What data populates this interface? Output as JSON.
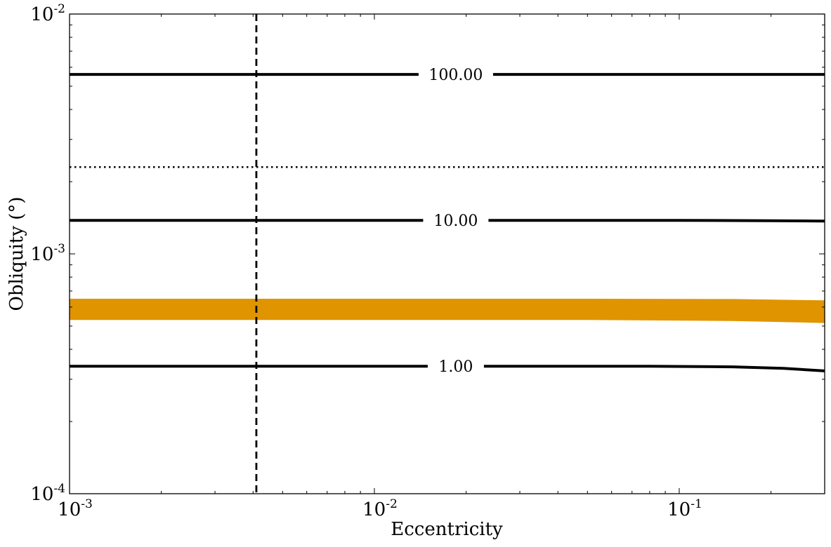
{
  "chart_data": {
    "type": "line",
    "title": "",
    "xlabel": "Eccentricity",
    "ylabel": "Obliquity (°)",
    "x_scale": "log",
    "y_scale": "log",
    "xlim": [
      0.001,
      0.3
    ],
    "ylim": [
      0.0001,
      0.01
    ],
    "grid": false,
    "x_ticks": [
      {
        "value": 0.001,
        "base": "10",
        "exp": "-3"
      },
      {
        "value": 0.01,
        "base": "10",
        "exp": "-2"
      },
      {
        "value": 0.1,
        "base": "10",
        "exp": "-1"
      }
    ],
    "y_ticks": [
      {
        "value": 0.0001,
        "base": "10",
        "exp": "-4"
      },
      {
        "value": 0.001,
        "base": "10",
        "exp": "-3"
      },
      {
        "value": 0.01,
        "base": "10",
        "exp": "-2"
      }
    ],
    "contours": [
      {
        "label": "100.00",
        "color": "#000000",
        "points": [
          [
            0.001,
            0.0056
          ],
          [
            0.01,
            0.0056
          ],
          [
            0.1,
            0.0056
          ],
          [
            0.3,
            0.0056
          ]
        ],
        "label_x": 0.0185
      },
      {
        "label": "10.00",
        "color": "#000000",
        "points": [
          [
            0.001,
            0.00138
          ],
          [
            0.01,
            0.00138
          ],
          [
            0.1,
            0.00138
          ],
          [
            0.2,
            0.001375
          ],
          [
            0.3,
            0.00137
          ]
        ],
        "label_x": 0.0185
      },
      {
        "label": "1.00",
        "color": "#000000",
        "points": [
          [
            0.001,
            0.00034
          ],
          [
            0.01,
            0.00034
          ],
          [
            0.08,
            0.00034
          ],
          [
            0.15,
            0.000338
          ],
          [
            0.22,
            0.000333
          ],
          [
            0.3,
            0.000325
          ]
        ],
        "label_x": 0.0185
      }
    ],
    "band": {
      "color": "#E09400",
      "upper": [
        [
          0.001,
          0.00065
        ],
        [
          0.05,
          0.00065
        ],
        [
          0.15,
          0.000648
        ],
        [
          0.3,
          0.00064
        ]
      ],
      "lower": [
        [
          0.001,
          0.00053
        ],
        [
          0.05,
          0.00053
        ],
        [
          0.15,
          0.000525
        ],
        [
          0.3,
          0.000515
        ]
      ]
    },
    "vline": {
      "x": 0.0041,
      "style": "dashed",
      "color": "#000000"
    },
    "hline": {
      "y": 0.0023,
      "style": "dotted",
      "color": "#000000"
    }
  }
}
